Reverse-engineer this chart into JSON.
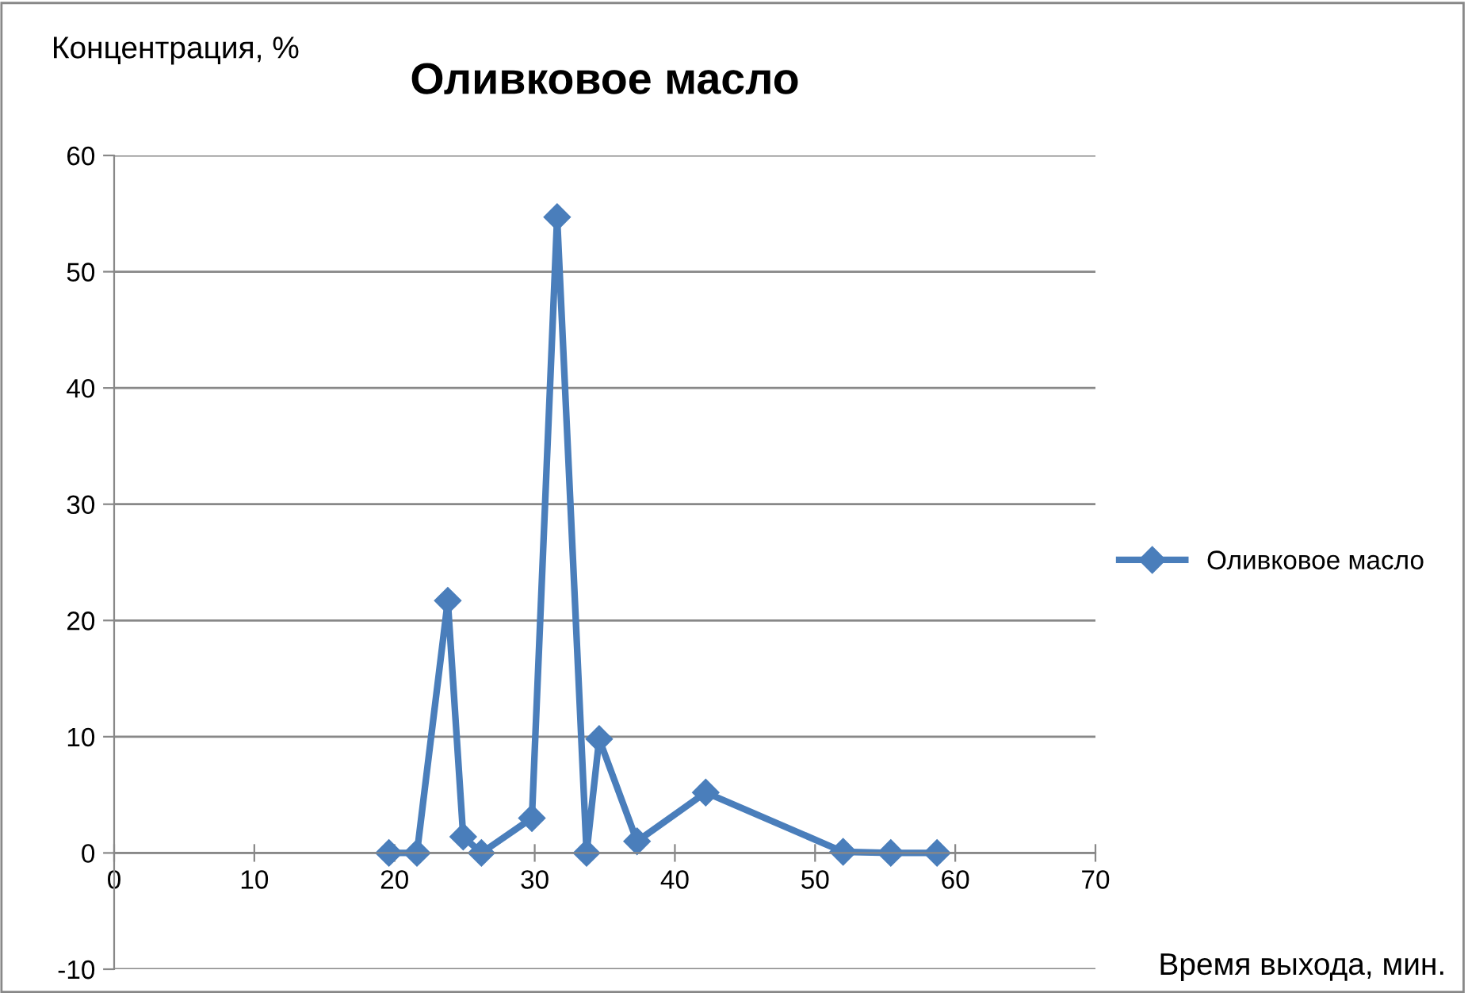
{
  "chart_data": {
    "type": "line",
    "title": "Оливковое масло",
    "xlabel": "Время выхода, мин.",
    "ylabel": "Концентрация, %",
    "series": [
      {
        "name": "Оливковое масло",
        "color": "#4a7ebb",
        "x": [
          19.6,
          21.6,
          23.8,
          24.9,
          26.2,
          29.8,
          31.6,
          33.7,
          34.6,
          37.3,
          42.2,
          52.0,
          55.4,
          58.7
        ],
        "values": [
          0,
          0,
          21.7,
          1.4,
          0,
          3.0,
          54.7,
          0,
          9.8,
          1.0,
          5.2,
          0.1,
          0,
          0
        ]
      }
    ],
    "xlim": [
      0,
      70
    ],
    "xticks": [
      0,
      10,
      20,
      30,
      40,
      50,
      60,
      70
    ],
    "ylim": [
      -10,
      60
    ],
    "yticks": [
      -10,
      0,
      10,
      20,
      30,
      40,
      50,
      60
    ],
    "grid": "y",
    "legend": "right",
    "marker": "diamond",
    "line_style": "solid"
  }
}
